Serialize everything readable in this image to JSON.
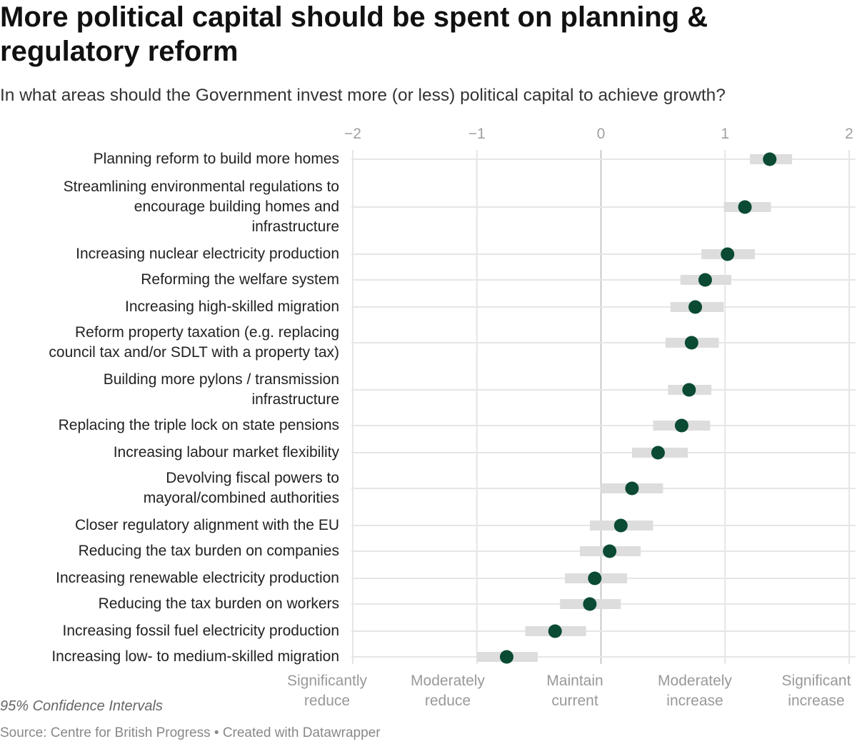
{
  "title": "More political capital should be spent on planning & regulatory reform",
  "subtitle": "In what areas should the Government invest more (or less) political capital to achieve growth?",
  "note": "95% Confidence Intervals",
  "source": "Source: Centre for British Progress • Created with Datawrapper",
  "colors": {
    "dot": "#0b4a33",
    "ci": "#dddddd",
    "grid": "#e6e6e6",
    "zero": "#bbbbbb"
  },
  "chart_data": {
    "type": "dot-range",
    "title": "More political capital should be spent on planning & regulatory reform",
    "xlim": [
      -2,
      2
    ],
    "xticks": [
      "−2",
      "−1",
      "0",
      "1",
      "2"
    ],
    "xtick_values": [
      -2,
      -1,
      0,
      1,
      2
    ],
    "scale_labels": [
      "Significantly\nreduce",
      "Moderately\nreduce",
      "Maintain\ncurrent",
      "Moderately\nincrease",
      "Significant\nincrease"
    ],
    "categories": [
      "Planning reform to build more homes",
      "Streamlining environmental regulations to\nencourage building homes and\ninfrastructure",
      "Increasing nuclear electricity production",
      "Reforming the welfare system",
      "Increasing high-skilled migration",
      "Reform property taxation (e.g. replacing\ncouncil tax and/or SDLT with a property tax)",
      "Building more pylons / transmission\ninfrastructure",
      "Replacing the triple lock on state pensions",
      "Increasing labour market flexibility",
      "Devolving fiscal powers to\nmayoral/combined authorities",
      "Closer regulatory alignment with the EU",
      "Reducing the tax burden on companies",
      "Increasing renewable electricity production",
      "Reducing the tax burden on workers",
      "Increasing fossil fuel electricity production",
      "Increasing low- to medium-skilled migration"
    ],
    "values": [
      1.36,
      1.16,
      1.02,
      0.84,
      0.76,
      0.73,
      0.71,
      0.65,
      0.46,
      0.25,
      0.16,
      0.07,
      -0.05,
      -0.09,
      -0.37,
      -0.76
    ],
    "ci_low": [
      1.2,
      0.99,
      0.81,
      0.64,
      0.56,
      0.52,
      0.54,
      0.42,
      0.25,
      0.0,
      -0.09,
      -0.17,
      -0.29,
      -0.33,
      -0.61,
      -1.0
    ],
    "ci_high": [
      1.54,
      1.37,
      1.24,
      1.05,
      0.99,
      0.95,
      0.89,
      0.88,
      0.7,
      0.5,
      0.42,
      0.32,
      0.21,
      0.16,
      -0.12,
      -0.51
    ]
  }
}
